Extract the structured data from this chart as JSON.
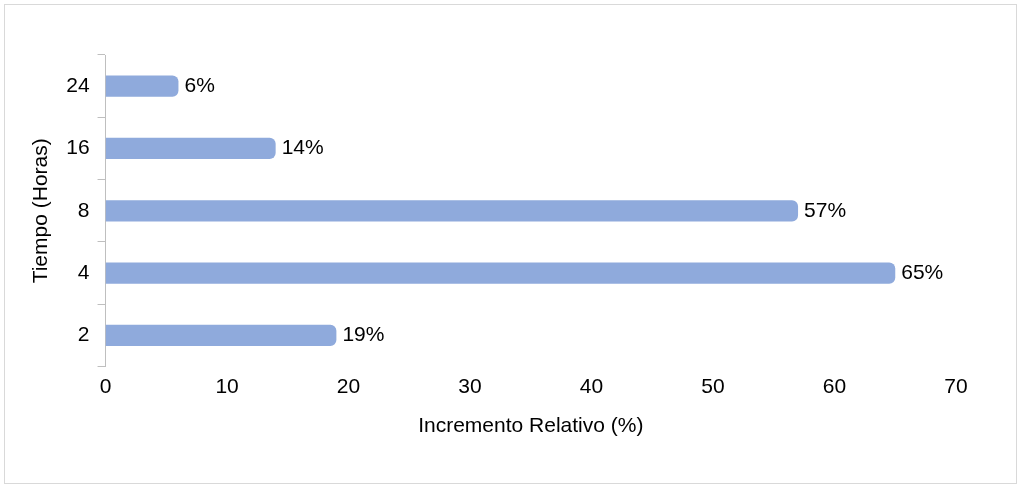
{
  "chart_data": {
    "type": "bar",
    "orientation": "horizontal",
    "xlabel": "Incremento Relativo (%)",
    "ylabel": "Tiempo (Horas)",
    "categories": [
      "24",
      "16",
      "8",
      "4",
      "2"
    ],
    "values": [
      6,
      14,
      57,
      65,
      19
    ],
    "value_labels": [
      "6%",
      "14%",
      "57%",
      "65%",
      "19%"
    ],
    "color": "#8faadc",
    "xlim": [
      0,
      70
    ],
    "xticks": [
      0,
      10,
      20,
      30,
      40,
      50,
      60,
      70
    ],
    "grid": false,
    "legend": false
  }
}
